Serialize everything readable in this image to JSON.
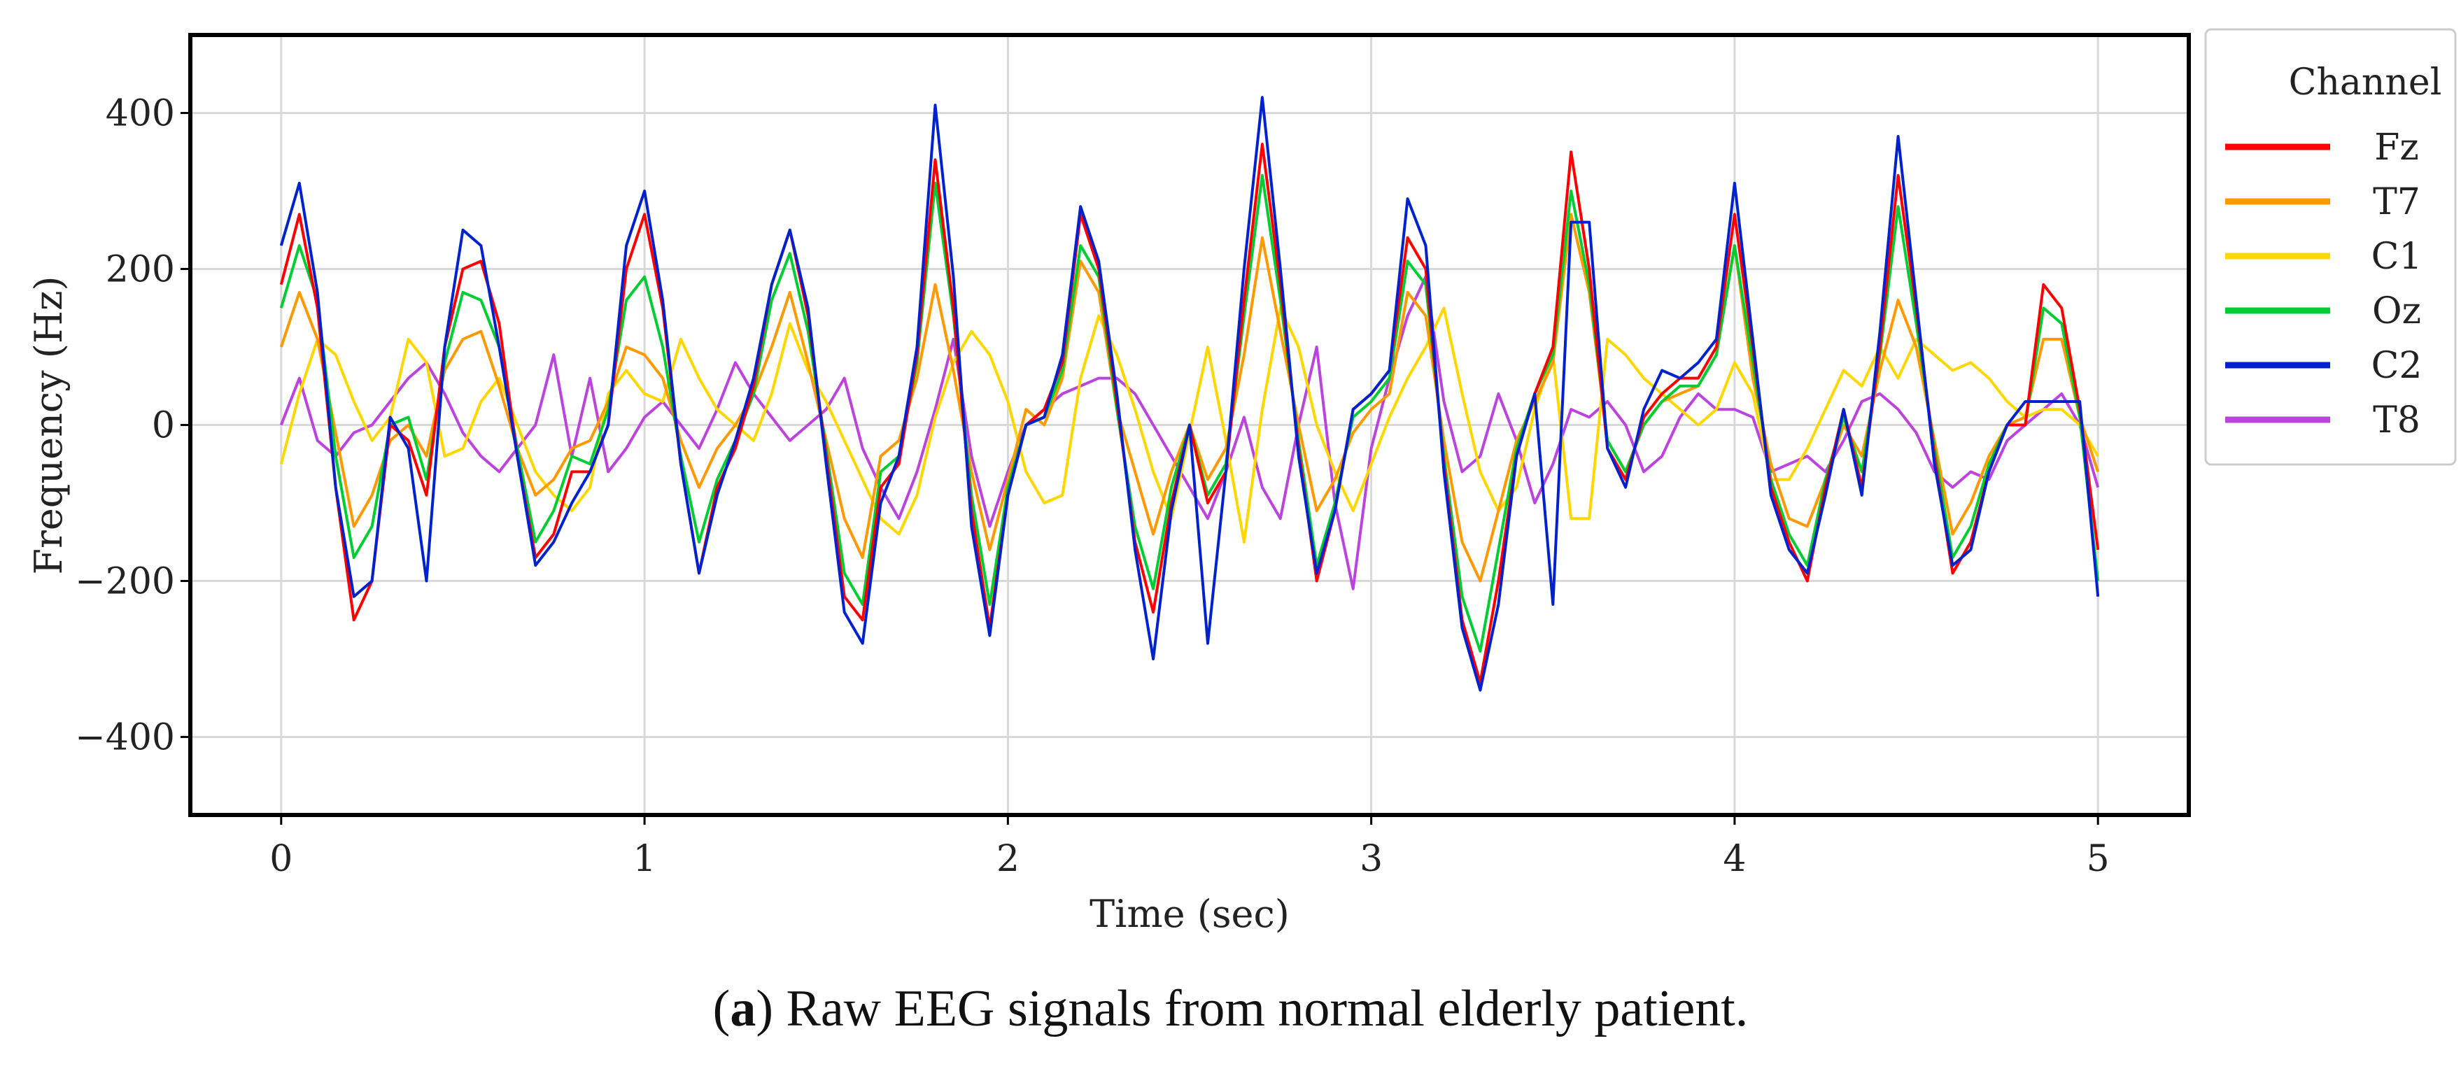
{
  "chart_data": {
    "type": "line",
    "title": "",
    "xlabel": "Time (sec)",
    "ylabel": "Frequency (Hz)",
    "xlim": [
      -0.25,
      5.25
    ],
    "ylim": [
      -500,
      500
    ],
    "xticks": [
      0,
      1,
      2,
      3,
      4,
      5
    ],
    "yticks": [
      -400,
      -200,
      0,
      200,
      400
    ],
    "yticklabels": [
      "−400",
      "−200",
      "0",
      "200",
      "400"
    ],
    "grid": true,
    "legend": {
      "title": "Channel",
      "position": "right"
    },
    "x": [
      0,
      0.05,
      0.1,
      0.15,
      0.2,
      0.25,
      0.3,
      0.35,
      0.4,
      0.45,
      0.5,
      0.55,
      0.6,
      0.65,
      0.7,
      0.75,
      0.8,
      0.85,
      0.9,
      0.95,
      1.0,
      1.05,
      1.1,
      1.15,
      1.2,
      1.25,
      1.3,
      1.35,
      1.4,
      1.45,
      1.5,
      1.55,
      1.6,
      1.65,
      1.7,
      1.75,
      1.8,
      1.85,
      1.9,
      1.95,
      2.0,
      2.05,
      2.1,
      2.15,
      2.2,
      2.25,
      2.3,
      2.35,
      2.4,
      2.45,
      2.5,
      2.55,
      2.6,
      2.65,
      2.7,
      2.75,
      2.8,
      2.85,
      2.9,
      2.95,
      3.0,
      3.05,
      3.1,
      3.15,
      3.2,
      3.25,
      3.3,
      3.35,
      3.4,
      3.45,
      3.5,
      3.55,
      3.6,
      3.65,
      3.7,
      3.75,
      3.8,
      3.85,
      3.9,
      3.95,
      4.0,
      4.05,
      4.1,
      4.15,
      4.2,
      4.25,
      4.3,
      4.35,
      4.4,
      4.45,
      4.5,
      4.55,
      4.6,
      4.65,
      4.7,
      4.75,
      4.8,
      4.85,
      4.9,
      4.95,
      5.0
    ],
    "series": [
      {
        "name": "Fz",
        "color": "#ff0000",
        "values": [
          180,
          270,
          150,
          -80,
          -250,
          -200,
          0,
          -20,
          -90,
          100,
          200,
          210,
          130,
          -40,
          -170,
          -140,
          -60,
          -60,
          0,
          200,
          270,
          150,
          -50,
          -190,
          -80,
          -30,
          50,
          180,
          250,
          140,
          -40,
          -220,
          -250,
          -80,
          -50,
          90,
          340,
          150,
          -110,
          -260,
          -90,
          0,
          20,
          80,
          270,
          200,
          30,
          -150,
          -240,
          -100,
          0,
          -100,
          -60,
          160,
          360,
          180,
          -30,
          -200,
          -110,
          20,
          40,
          70,
          240,
          200,
          -50,
          -250,
          -330,
          -200,
          -40,
          40,
          100,
          350,
          200,
          -30,
          -70,
          10,
          40,
          60,
          60,
          100,
          270,
          100,
          -80,
          -150,
          -200,
          -80,
          20,
          -80,
          100,
          320,
          150,
          -40,
          -190,
          -150,
          -60,
          0,
          0,
          180,
          150,
          20,
          -160
        ]
      },
      {
        "name": "T7",
        "color": "#ff9900",
        "values": [
          100,
          170,
          110,
          -10,
          -130,
          -90,
          -20,
          0,
          -40,
          70,
          110,
          120,
          50,
          -30,
          -90,
          -70,
          -30,
          -20,
          30,
          100,
          90,
          60,
          -20,
          -80,
          -30,
          0,
          40,
          100,
          170,
          80,
          -20,
          -120,
          -170,
          -40,
          -20,
          60,
          180,
          70,
          -60,
          -160,
          -70,
          20,
          0,
          60,
          210,
          170,
          20,
          -60,
          -140,
          -60,
          0,
          -70,
          -30,
          90,
          240,
          120,
          0,
          -110,
          -70,
          -10,
          20,
          40,
          170,
          140,
          -20,
          -150,
          -200,
          -110,
          -20,
          30,
          80,
          270,
          170,
          -20,
          -60,
          0,
          30,
          40,
          50,
          90,
          230,
          60,
          -50,
          -120,
          -130,
          -70,
          0,
          -40,
          70,
          160,
          100,
          -20,
          -140,
          -100,
          -40,
          0,
          10,
          110,
          110,
          10,
          -60
        ]
      },
      {
        "name": "C1",
        "color": "#ffd700",
        "values": [
          -50,
          40,
          110,
          90,
          30,
          -20,
          10,
          110,
          80,
          -40,
          -30,
          30,
          60,
          0,
          -60,
          -90,
          -110,
          -80,
          40,
          70,
          40,
          30,
          110,
          60,
          20,
          0,
          -20,
          40,
          130,
          70,
          30,
          -20,
          -70,
          -120,
          -140,
          -90,
          10,
          80,
          120,
          90,
          30,
          -60,
          -100,
          -90,
          60,
          140,
          90,
          20,
          -60,
          -120,
          -10,
          100,
          -20,
          -150,
          20,
          150,
          100,
          0,
          -60,
          -110,
          -50,
          10,
          60,
          100,
          150,
          40,
          -60,
          -110,
          -80,
          20,
          90,
          -120,
          -120,
          110,
          90,
          60,
          40,
          20,
          0,
          20,
          80,
          40,
          -70,
          -70,
          -30,
          20,
          70,
          50,
          100,
          60,
          110,
          90,
          70,
          80,
          60,
          30,
          10,
          20,
          20,
          0,
          -40
        ]
      },
      {
        "name": "Oz",
        "color": "#00cc33",
        "values": [
          150,
          230,
          160,
          -40,
          -170,
          -130,
          0,
          10,
          -70,
          80,
          170,
          160,
          100,
          -30,
          -150,
          -110,
          -40,
          -50,
          20,
          160,
          190,
          100,
          -40,
          -150,
          -70,
          -20,
          40,
          160,
          220,
          120,
          -30,
          -190,
          -230,
          -60,
          -40,
          80,
          310,
          140,
          -90,
          -230,
          -80,
          0,
          10,
          70,
          230,
          190,
          20,
          -130,
          -210,
          -80,
          0,
          -90,
          -50,
          140,
          320,
          160,
          -20,
          -180,
          -100,
          10,
          30,
          60,
          210,
          180,
          -40,
          -220,
          -290,
          -160,
          -30,
          40,
          90,
          300,
          180,
          -20,
          -60,
          0,
          30,
          50,
          50,
          90,
          230,
          80,
          -70,
          -140,
          -180,
          -70,
          10,
          -60,
          90,
          280,
          130,
          -30,
          -170,
          -130,
          -50,
          0,
          0,
          150,
          130,
          10,
          -200
        ]
      },
      {
        "name": "C2",
        "color": "#0022cc",
        "values": [
          230,
          310,
          170,
          -80,
          -220,
          -200,
          10,
          -30,
          -200,
          100,
          250,
          230,
          100,
          -40,
          -180,
          -150,
          -100,
          -60,
          0,
          230,
          300,
          160,
          -50,
          -190,
          -90,
          -20,
          60,
          180,
          250,
          150,
          -50,
          -240,
          -280,
          -100,
          -40,
          100,
          410,
          190,
          -130,
          -270,
          -90,
          0,
          10,
          90,
          280,
          210,
          40,
          -160,
          -300,
          -110,
          0,
          -280,
          -60,
          200,
          420,
          200,
          -40,
          -190,
          -110,
          20,
          40,
          70,
          290,
          230,
          -60,
          -260,
          -340,
          -230,
          -40,
          40,
          -230,
          260,
          260,
          -30,
          -80,
          20,
          70,
          60,
          80,
          110,
          310,
          110,
          -90,
          -160,
          -190,
          -90,
          20,
          -90,
          120,
          370,
          160,
          -50,
          -180,
          -160,
          -60,
          0,
          30,
          30,
          30,
          30,
          -220
        ]
      },
      {
        "name": "T8",
        "color": "#bb44dd",
        "values": [
          0,
          60,
          -20,
          -40,
          -10,
          0,
          30,
          60,
          80,
          40,
          -10,
          -40,
          -60,
          -30,
          0,
          90,
          -40,
          60,
          -60,
          -30,
          10,
          30,
          0,
          -30,
          20,
          80,
          40,
          10,
          -20,
          0,
          20,
          60,
          -30,
          -80,
          -120,
          -60,
          20,
          110,
          -40,
          -130,
          -60,
          0,
          20,
          40,
          50,
          60,
          60,
          40,
          0,
          -40,
          -80,
          -120,
          -60,
          10,
          -80,
          -120,
          0,
          100,
          -100,
          -210,
          -30,
          60,
          140,
          190,
          30,
          -60,
          -40,
          40,
          -20,
          -100,
          -50,
          20,
          10,
          30,
          0,
          -60,
          -40,
          10,
          40,
          20,
          20,
          10,
          -60,
          -50,
          -40,
          -60,
          -20,
          30,
          40,
          20,
          -10,
          -60,
          -80,
          -60,
          -70,
          -20,
          0,
          20,
          40,
          0,
          -80
        ]
      }
    ]
  },
  "caption": {
    "label": "a",
    "text": " Raw EEG signals from normal elderly patient."
  }
}
